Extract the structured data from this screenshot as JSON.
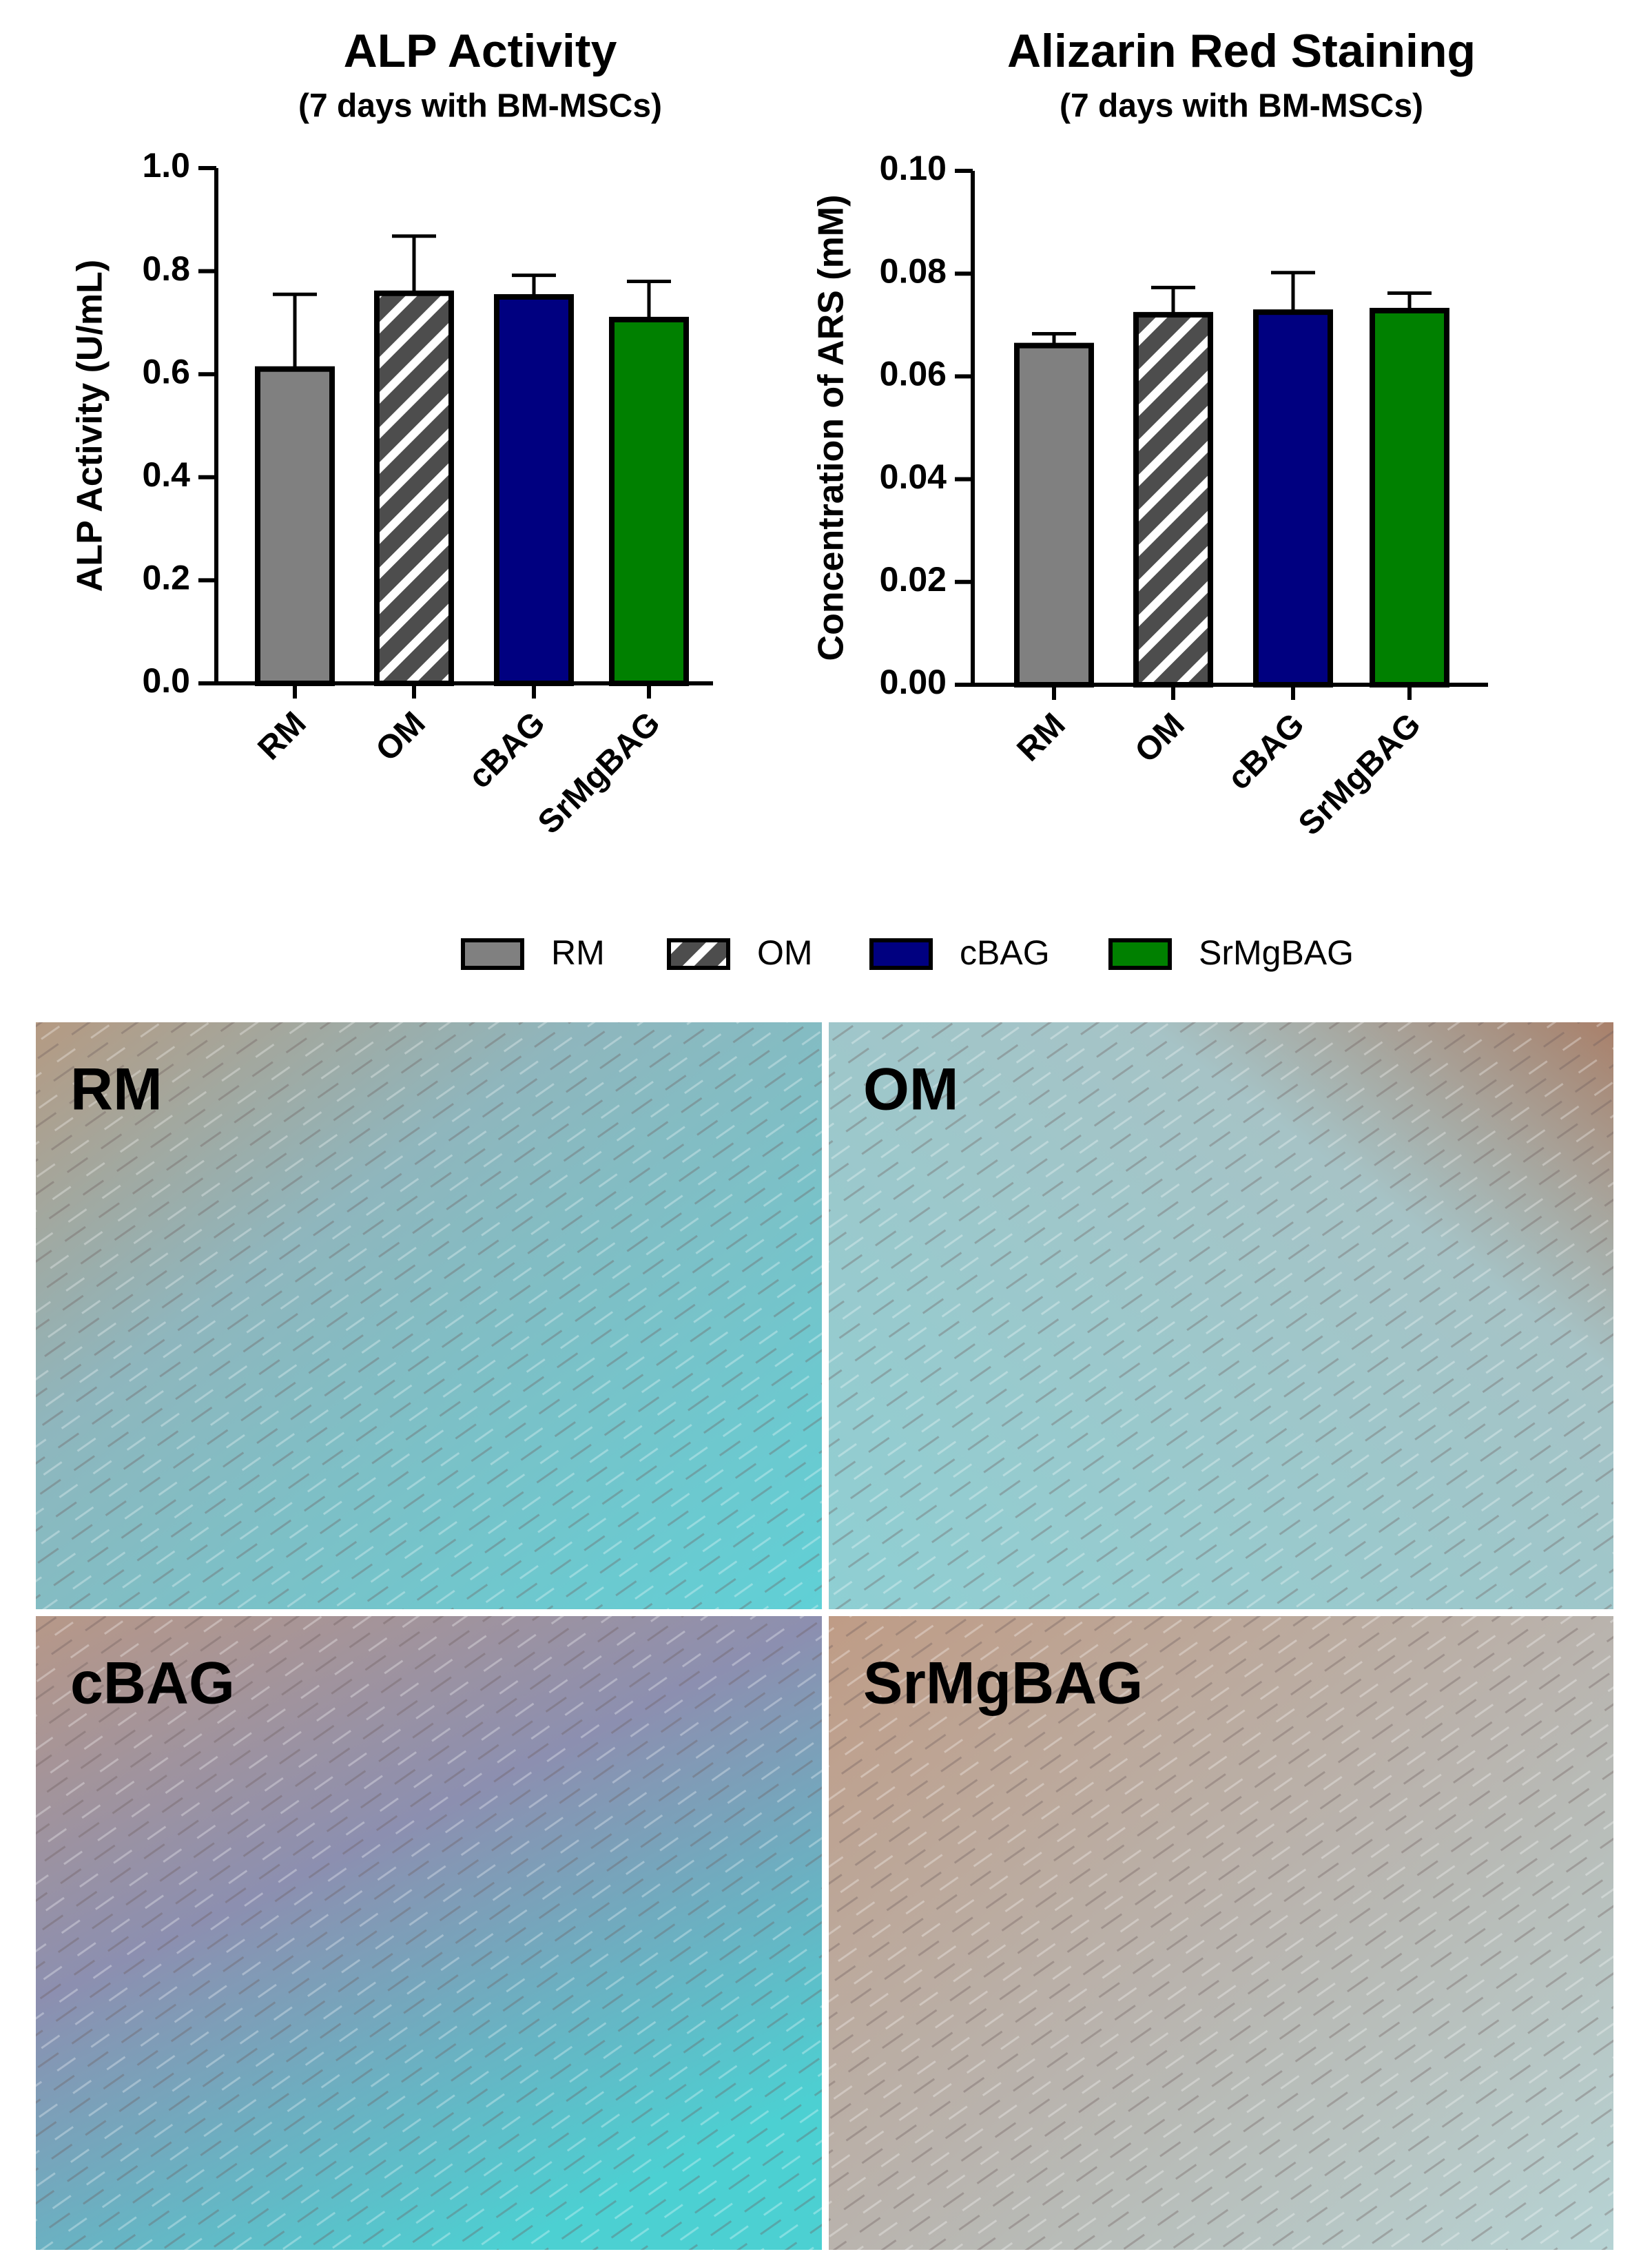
{
  "chart_data": [
    {
      "type": "bar",
      "title": "ALP Activity",
      "subtitle": "(7 days with BM-MSCs)",
      "y_label": "ALP Activity (U/mL)",
      "categories": [
        "RM",
        "OM",
        "cBAG",
        "SrMgBAG"
      ],
      "values": [
        0.61,
        0.757,
        0.75,
        0.706
      ],
      "errors": [
        0.145,
        0.111,
        0.042,
        0.074
      ],
      "colors": [
        "#808080",
        "#4d4d4d",
        "#000080",
        "#008000"
      ],
      "hatch": [
        false,
        true,
        false,
        false
      ],
      "ylim": [
        0,
        1
      ],
      "yticks": [
        {
          "value": 0,
          "label": "0.0"
        },
        0.2,
        0.4,
        0.6,
        0.8,
        {
          "value": 1,
          "label": "1.0"
        }
      ]
    },
    {
      "type": "bar",
      "title": "Alizarin Red Staining",
      "subtitle": "(7 days with BM-MSCs)",
      "y_label": "Concentration of ARS (mM)",
      "categories": [
        "RM",
        "OM",
        "cBAG",
        "SrMgBAG"
      ],
      "values": [
        0.066,
        0.072,
        0.0725,
        0.0728
      ],
      "errors": [
        0.0023,
        0.0053,
        0.0077,
        0.0034
      ],
      "colors": [
        "#808080",
        "#4d4d4d",
        "#000080",
        "#008000"
      ],
      "hatch": [
        false,
        true,
        false,
        false
      ],
      "ylim": [
        0,
        0.1
      ],
      "yticks": [
        {
          "value": 0,
          "label": "0.00"
        },
        0.02,
        0.04,
        0.06,
        0.08,
        {
          "value": 0.1,
          "label": "0.10"
        }
      ]
    }
  ],
  "image_panels": [
    {
      "label": "RM"
    },
    {
      "label": "OM"
    },
    {
      "label": "cBAG"
    },
    {
      "label": "SrMgBAG"
    }
  ]
}
